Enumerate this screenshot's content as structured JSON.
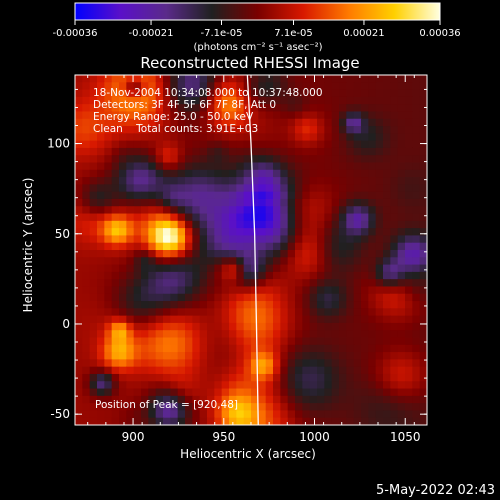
{
  "window": {
    "footer_timestamp": "5-May-2022 02:43"
  },
  "colorbar": {
    "tick_labels": [
      "-0.00036",
      "-0.00021",
      "-7.1e-05",
      "7.1e-05",
      "0.00021",
      "0.00036"
    ],
    "tick_values": [
      -0.00036,
      -0.00021,
      -7.1e-05,
      7.1e-05,
      0.00021,
      0.00036
    ],
    "range": [
      -0.00036,
      0.00036
    ],
    "unit_label": "(photons cm⁻² s⁻¹ asec⁻²)",
    "colors": [
      "#0000ff",
      "#5a10c8",
      "#5a2a8a",
      "#202020",
      "#7a0000",
      "#d81800",
      "#ff7a00",
      "#ffd000",
      "#ffffe0"
    ]
  },
  "overlay": {
    "line1": "18-Nov-2004 10:34:08.000 to 10:37:48.000",
    "line2": "Detectors: 3F 4F 5F 6F 7F 8F, Att 0",
    "line3": "Energy Range: 25.0 - 50.0 keV",
    "line4": "Clean    Total counts: 3.91E+03",
    "peak": "Position of Peak = [920,48]"
  },
  "chart_data": {
    "type": "heatmap",
    "title": "Reconstructed RHESSI Image",
    "xlabel": "Heliocentric X (arcsec)",
    "ylabel": "Heliocentric Y (arcsec)",
    "xlim": [
      868,
      1062
    ],
    "ylim": [
      -56,
      138
    ],
    "x_ticks": [
      900,
      950,
      1000,
      1050
    ],
    "y_ticks": [
      -50,
      0,
      50,
      100
    ],
    "value_range": [
      -0.00036,
      0.00036
    ],
    "grid": false,
    "limb_line": [
      [
        963,
        138
      ],
      [
        965,
        100
      ],
      [
        967,
        50
      ],
      [
        968,
        0
      ],
      [
        969,
        -56
      ]
    ],
    "peak_position": [
      920,
      48
    ],
    "grid_size": [
      48,
      48
    ],
    "seed": 7
  }
}
